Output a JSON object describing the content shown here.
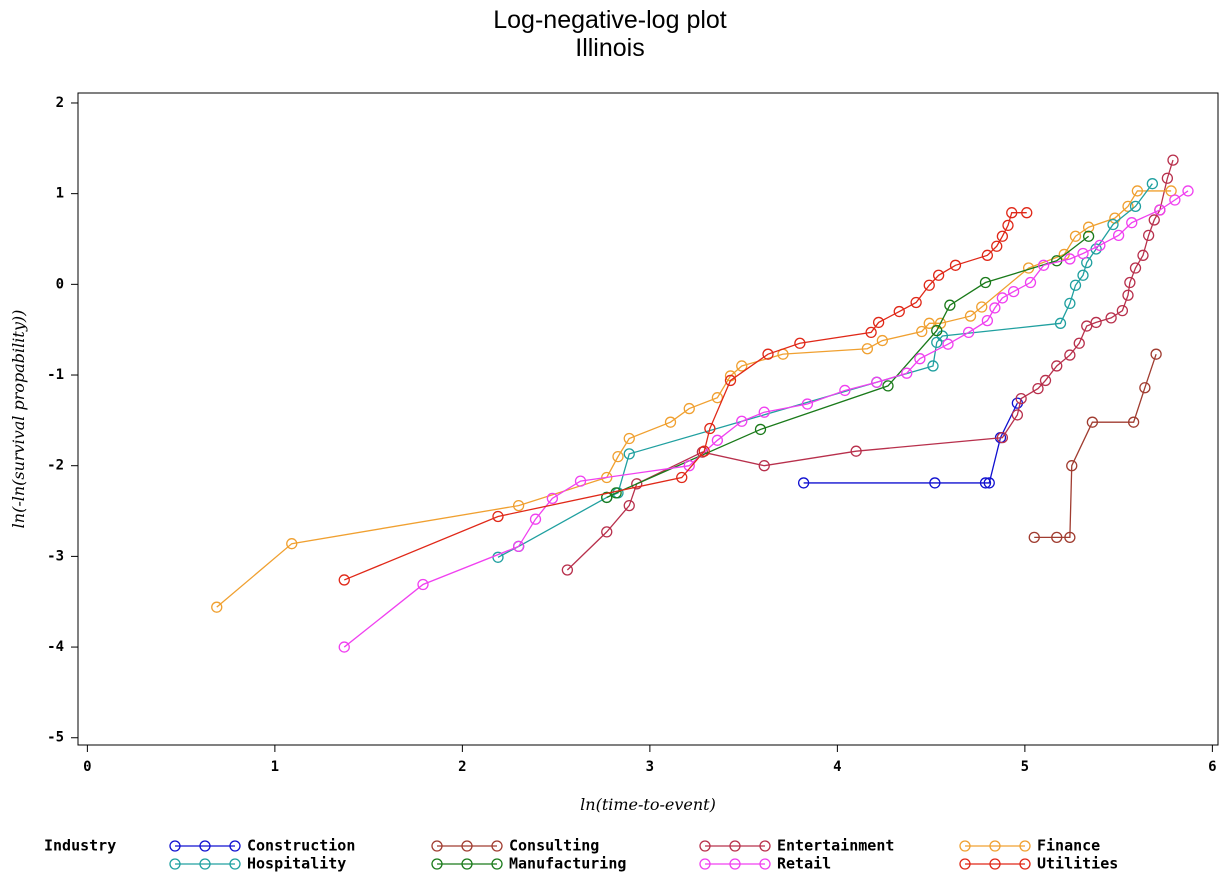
{
  "chart_data": {
    "type": "line",
    "title": "Log-negative-log plot",
    "subtitle": "Illinois",
    "x_label": "ln(time-to-event)",
    "y_label": "ln(-ln(survival propability))",
    "legend_title": "Industry",
    "xlim": [
      -0.05,
      6.03
    ],
    "ylim": [
      -5.08,
      2.11
    ],
    "xticks": [
      0,
      1,
      2,
      3,
      4,
      5,
      6
    ],
    "yticks": [
      -5,
      -4,
      -3,
      -2,
      -1,
      0,
      1,
      2
    ],
    "series": [
      {
        "name": "Construction",
        "color": "#1010d0",
        "x": [
          3.82,
          4.52,
          4.79,
          4.81,
          4.87,
          4.96
        ],
        "values": [
          -2.19,
          -2.19,
          -2.19,
          -2.19,
          -1.69,
          -1.31
        ]
      },
      {
        "name": "Consulting",
        "color": "#a03c30",
        "x": [
          5.05,
          5.17,
          5.24,
          5.25,
          5.36,
          5.58,
          5.64,
          5.7
        ],
        "values": [
          -2.79,
          -2.79,
          -2.79,
          -2.0,
          -1.52,
          -1.52,
          -1.14,
          -0.77
        ]
      },
      {
        "name": "Entertainment",
        "color": "#b8304c",
        "x": [
          2.56,
          2.77,
          2.89,
          2.93,
          3.28,
          3.61,
          4.1,
          4.88,
          4.96,
          4.98,
          5.07,
          5.11,
          5.17,
          5.24,
          5.29,
          5.33,
          5.38,
          5.46,
          5.52,
          5.55,
          5.56,
          5.59,
          5.63,
          5.66,
          5.69,
          5.72,
          5.76,
          5.79
        ],
        "values": [
          -3.15,
          -2.73,
          -2.44,
          -2.2,
          -1.85,
          -2.0,
          -1.84,
          -1.69,
          -1.44,
          -1.26,
          -1.15,
          -1.06,
          -0.9,
          -0.78,
          -0.65,
          -0.46,
          -0.42,
          -0.37,
          -0.29,
          -0.12,
          0.02,
          0.18,
          0.32,
          0.54,
          0.71,
          0.82,
          1.17,
          1.37
        ]
      },
      {
        "name": "Finance",
        "color": "#f0a030",
        "x": [
          0.69,
          1.09,
          2.3,
          2.77,
          2.83,
          2.89,
          3.11,
          3.21,
          3.36,
          3.43,
          3.49,
          3.71,
          4.16,
          4.24,
          4.45,
          4.49,
          4.55,
          4.71,
          4.77,
          5.02,
          5.21,
          5.27,
          5.34,
          5.48,
          5.55,
          5.6,
          5.78
        ],
        "values": [
          -3.56,
          -2.86,
          -2.44,
          -2.13,
          -1.9,
          -1.7,
          -1.52,
          -1.37,
          -1.25,
          -1.01,
          -0.9,
          -0.77,
          -0.71,
          -0.62,
          -0.52,
          -0.43,
          -0.43,
          -0.35,
          -0.25,
          0.18,
          0.33,
          0.53,
          0.63,
          0.73,
          0.86,
          1.03,
          1.03
        ]
      },
      {
        "name": "Hospitality",
        "color": "#20a0a0",
        "x": [
          2.19,
          2.3,
          2.77,
          2.83,
          2.89,
          4.21,
          4.51,
          4.53,
          4.56,
          5.19,
          5.24,
          5.27,
          5.31,
          5.33,
          5.38,
          5.47,
          5.59,
          5.68
        ],
        "values": [
          -3.01,
          -2.89,
          -2.35,
          -2.3,
          -1.87,
          -1.08,
          -0.9,
          -0.64,
          -0.57,
          -0.43,
          -0.21,
          -0.01,
          0.1,
          0.24,
          0.39,
          0.66,
          0.86,
          1.11
        ]
      },
      {
        "name": "Manufacturing",
        "color": "#1a7a1a",
        "x": [
          2.77,
          2.82,
          3.59,
          4.27,
          4.53,
          4.6,
          4.79,
          5.17,
          5.34
        ],
        "values": [
          -2.35,
          -2.3,
          -1.6,
          -1.12,
          -0.51,
          -0.23,
          0.02,
          0.26,
          0.53
        ]
      },
      {
        "name": "Retail",
        "color": "#f040f0",
        "x": [
          1.37,
          1.79,
          2.3,
          2.39,
          2.48,
          2.63,
          3.21,
          3.36,
          3.49,
          3.61,
          3.84,
          4.04,
          4.21,
          4.37,
          4.44,
          4.59,
          4.7,
          4.8,
          4.84,
          4.88,
          4.94,
          5.03,
          5.1,
          5.24,
          5.31,
          5.4,
          5.5,
          5.57,
          5.72,
          5.8,
          5.87
        ],
        "values": [
          -4.0,
          -3.31,
          -2.89,
          -2.59,
          -2.36,
          -2.17,
          -2.0,
          -1.72,
          -1.51,
          -1.41,
          -1.32,
          -1.17,
          -1.08,
          -0.98,
          -0.82,
          -0.66,
          -0.53,
          -0.4,
          -0.26,
          -0.15,
          -0.08,
          0.02,
          0.21,
          0.28,
          0.34,
          0.43,
          0.54,
          0.68,
          0.82,
          0.93,
          1.03
        ]
      },
      {
        "name": "Utilities",
        "color": "#e02818",
        "x": [
          1.37,
          2.19,
          3.17,
          3.29,
          3.32,
          3.43,
          3.63,
          3.8,
          4.18,
          4.22,
          4.33,
          4.42,
          4.49,
          4.54,
          4.63,
          4.8,
          4.85,
          4.88,
          4.91,
          4.93,
          5.01
        ],
        "values": [
          -3.26,
          -2.56,
          -2.13,
          -1.84,
          -1.59,
          -1.06,
          -0.77,
          -0.65,
          -0.53,
          -0.42,
          -0.3,
          -0.2,
          -0.01,
          0.1,
          0.21,
          0.32,
          0.42,
          0.53,
          0.65,
          0.79,
          0.79
        ]
      }
    ]
  }
}
